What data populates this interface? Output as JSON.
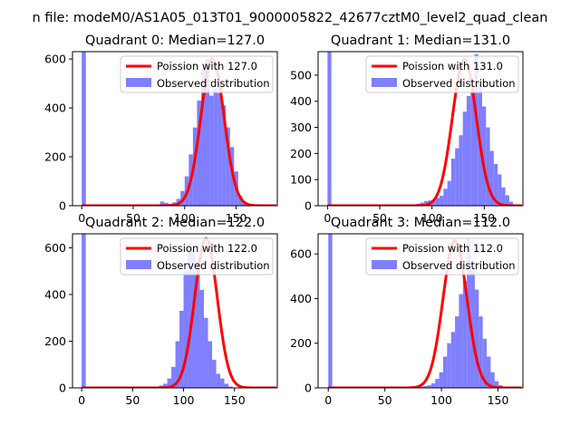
{
  "figure": {
    "suptitle": "n file: modeM0/AS1A05_013T01_9000005822_42677cztM0_level2_quad_clean"
  },
  "colors": {
    "fit_line": "#ff0000",
    "histogram": "#7f7fff"
  },
  "chart_data": [
    {
      "type": "bar",
      "title": "Quadrant 0: Median=127.0",
      "xlim": [
        -9,
        190
      ],
      "ylim": [
        0,
        630
      ],
      "xticks": [
        0,
        50,
        100,
        150
      ],
      "yticks": [
        0,
        200,
        400,
        600
      ],
      "legend": [
        "Poission with 127.0",
        "Observed distribution"
      ],
      "legend_position": "top-right",
      "series": [
        {
          "name": "Observed distribution",
          "kind": "histogram",
          "bin_width": 4,
          "bin_start": 0,
          "values": [
            630,
            0,
            0,
            0,
            0,
            0,
            0,
            0,
            0,
            0,
            0,
            0,
            0,
            0,
            0,
            0,
            0,
            0,
            0,
            17,
            12,
            8,
            14,
            28,
            60,
            120,
            210,
            320,
            430,
            560,
            600,
            450,
            480,
            460,
            410,
            320,
            240,
            140,
            40,
            15,
            6,
            3,
            1
          ]
        },
        {
          "name": "Poission with 127.0",
          "kind": "line",
          "mean": 127.0,
          "amplitude": 600
        }
      ]
    },
    {
      "type": "bar",
      "title": "Quadrant 1: Median=131.0",
      "xlim": [
        -9,
        187
      ],
      "ylim": [
        0,
        590
      ],
      "xticks": [
        0,
        50,
        100,
        150
      ],
      "yticks": [
        0,
        100,
        200,
        300,
        400,
        500
      ],
      "legend": [
        "Poission with 131.0",
        "Observed distribution"
      ],
      "legend_position": "top-right",
      "series": [
        {
          "name": "Observed distribution",
          "kind": "histogram",
          "bin_width": 3.7,
          "bin_start": 0,
          "values": [
            590,
            0,
            0,
            0,
            0,
            0,
            0,
            0,
            0,
            0,
            0,
            0,
            0,
            0,
            0,
            0,
            0,
            0,
            0,
            0,
            0,
            0,
            0,
            8,
            12,
            18,
            20,
            22,
            30,
            38,
            65,
            95,
            180,
            220,
            270,
            360,
            420,
            440,
            580,
            470,
            380,
            300,
            210,
            160,
            120,
            70,
            40,
            15,
            5,
            2
          ]
        },
        {
          "name": "Poission with 131.0",
          "kind": "line",
          "mean": 131.0,
          "amplitude": 560
        }
      ]
    },
    {
      "type": "bar",
      "title": "Quadrant 2: Median=122.0",
      "xlim": [
        -9,
        192
      ],
      "ylim": [
        0,
        660
      ],
      "xticks": [
        0,
        50,
        100,
        150
      ],
      "yticks": [
        0,
        200,
        400,
        600
      ],
      "legend": [
        "Poission with 122.0",
        "Observed distribution"
      ],
      "legend_position": "top-right",
      "series": [
        {
          "name": "Observed distribution",
          "kind": "histogram",
          "bin_width": 4,
          "bin_start": 0,
          "values": [
            660,
            0,
            0,
            0,
            0,
            0,
            0,
            0,
            0,
            0,
            0,
            0,
            0,
            0,
            0,
            0,
            0,
            0,
            0,
            10,
            18,
            40,
            90,
            200,
            330,
            500,
            620,
            600,
            540,
            420,
            300,
            200,
            120,
            60,
            40,
            18,
            6,
            2
          ]
        },
        {
          "name": "Poission with 122.0",
          "kind": "line",
          "mean": 122.0,
          "amplitude": 640
        }
      ]
    },
    {
      "type": "bar",
      "title": "Quadrant 3: Median=112.0",
      "xlim": [
        -9,
        172
      ],
      "ylim": [
        0,
        690
      ],
      "xticks": [
        0,
        50,
        100,
        150
      ],
      "yticks": [
        0,
        200,
        400,
        600
      ],
      "legend": [
        "Poission with 112.0",
        "Observed distribution"
      ],
      "legend_position": "top-right",
      "series": [
        {
          "name": "Observed distribution",
          "kind": "histogram",
          "bin_width": 3.5,
          "bin_start": 0,
          "values": [
            690,
            0,
            0,
            0,
            0,
            0,
            0,
            0,
            0,
            0,
            0,
            0,
            0,
            0,
            0,
            0,
            0,
            0,
            0,
            0,
            0,
            0,
            3,
            6,
            8,
            12,
            20,
            40,
            70,
            140,
            200,
            250,
            320,
            420,
            480,
            670,
            530,
            440,
            320,
            220,
            140,
            70,
            30,
            12,
            5,
            2
          ]
        },
        {
          "name": "Poission with 112.0",
          "kind": "line",
          "mean": 112.0,
          "amplitude": 660
        }
      ]
    }
  ]
}
